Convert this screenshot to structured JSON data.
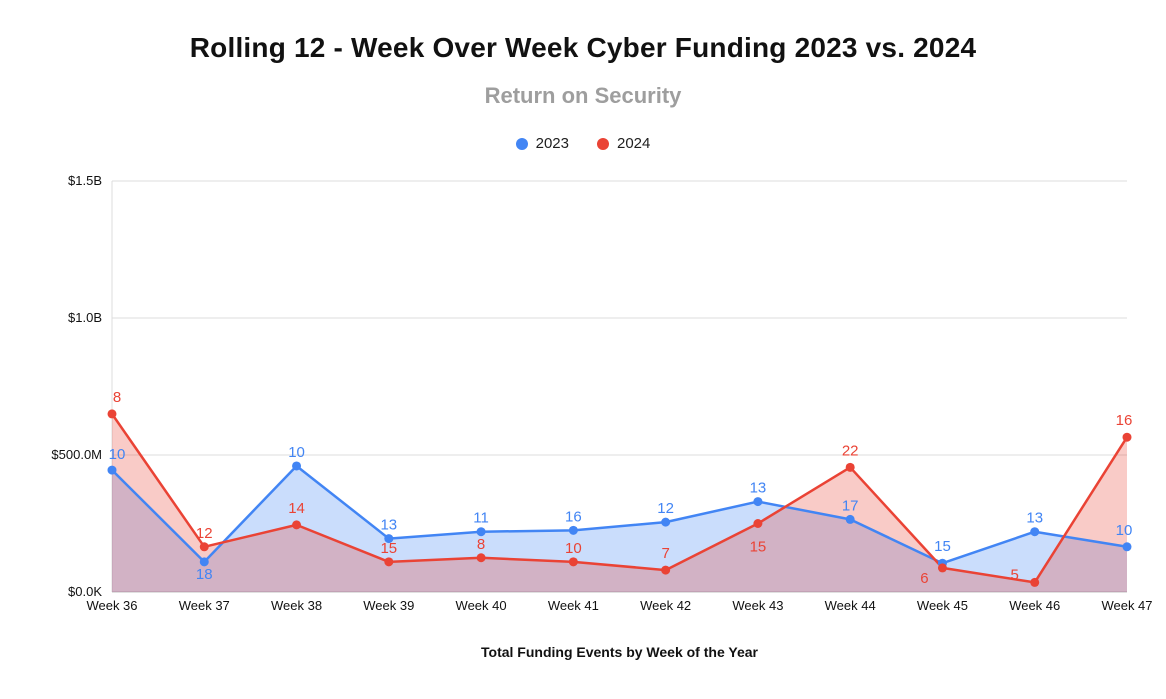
{
  "header": {
    "title": "Rolling 12 - Week Over Week Cyber Funding 2023 vs. 2024",
    "subtitle": "Return on Security"
  },
  "legend": [
    {
      "label": "2023",
      "color": "#4285f4"
    },
    {
      "label": "2024",
      "color": "#ea4335"
    }
  ],
  "chart_data": {
    "type": "area",
    "title": "Rolling 12 - Week Over Week Cyber Funding 2023 vs. 2024",
    "subtitle": "Return on Security",
    "xlabel": "Total Funding Events by Week of the Year",
    "ylabel": "",
    "grid": true,
    "legend_position": "top",
    "categories": [
      "Week 36",
      "Week 37",
      "Week 38",
      "Week 39",
      "Week 40",
      "Week 41",
      "Week 42",
      "Week 43",
      "Week 44",
      "Week 45",
      "Week 46",
      "Week 47"
    ],
    "y_ticks": [
      {
        "label": "$0.0K",
        "value": 0
      },
      {
        "label": "$500.0M",
        "value": 500
      },
      {
        "label": "$1.0B",
        "value": 1000
      },
      {
        "label": "$1.5B",
        "value": 1500
      }
    ],
    "y_unit": "millions USD",
    "ylim": [
      0,
      1500
    ],
    "series": [
      {
        "name": "2023",
        "color": "#4285f4",
        "values_musd": [
          445,
          110,
          460,
          195,
          220,
          225,
          255,
          330,
          265,
          105,
          220,
          165
        ],
        "point_labels": [
          10,
          18,
          10,
          13,
          11,
          16,
          12,
          13,
          17,
          15,
          13,
          10
        ]
      },
      {
        "name": "2024",
        "color": "#ea4335",
        "values_musd": [
          650,
          165,
          245,
          110,
          125,
          110,
          80,
          250,
          455,
          88,
          35,
          565
        ],
        "point_labels": [
          8,
          12,
          14,
          15,
          8,
          10,
          7,
          15,
          22,
          6,
          5,
          16
        ]
      }
    ],
    "label_offsets": {
      "0": {
        "0": [
          5,
          -15
        ],
        "1": [
          0,
          13
        ],
        "9": [
          0,
          -16
        ],
        "11": [
          -3,
          -16
        ]
      },
      "1": {
        "0": [
          5,
          -16
        ],
        "2": [
          0,
          -16
        ],
        "6": [
          0,
          -16
        ],
        "7": [
          0,
          24
        ],
        "8": [
          0,
          -16
        ],
        "9": [
          -18,
          11
        ],
        "10": [
          -20,
          -7
        ],
        "11": [
          -3,
          -16
        ]
      }
    },
    "style": {
      "grid_color": "#dcdcdc",
      "baseline_color": "#c2c2c2",
      "area_alpha": 0.28,
      "axis_text_color": "#111111"
    }
  }
}
